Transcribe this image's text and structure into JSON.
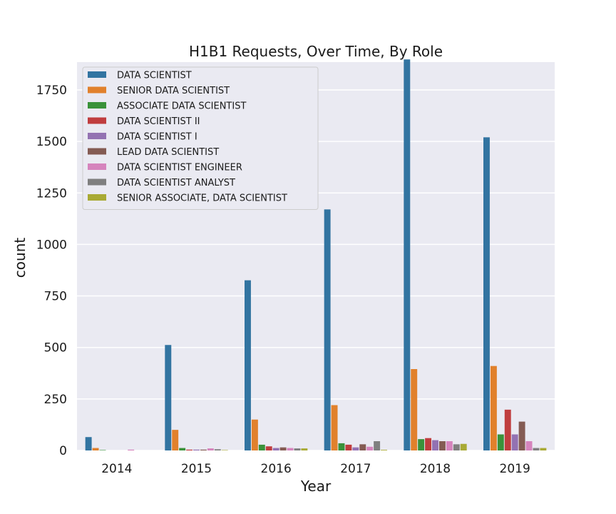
{
  "chart_data": {
    "type": "bar",
    "title": "H1B1 Requests, Over Time, By Role",
    "xlabel": "Year",
    "ylabel": "count",
    "ylim": [
      0,
      1885
    ],
    "yticks": [
      0,
      250,
      500,
      750,
      1000,
      1250,
      1500,
      1750
    ],
    "grid": true,
    "legend_position": "top-left",
    "categories": [
      "2014",
      "2015",
      "2016",
      "2017",
      "2018",
      "2019"
    ],
    "series": [
      {
        "name": "DATA SCIENTIST",
        "color": "#3274a1",
        "values": [
          65,
          512,
          826,
          1170,
          1898,
          1520
        ]
      },
      {
        "name": "SENIOR DATA SCIENTIST",
        "color": "#e1812c",
        "values": [
          12,
          100,
          150,
          220,
          395,
          410
        ]
      },
      {
        "name": "ASSOCIATE DATA SCIENTIST",
        "color": "#3a923a",
        "values": [
          2,
          12,
          28,
          35,
          55,
          78
        ]
      },
      {
        "name": "DATA SCIENTIST II",
        "color": "#c03d3e",
        "values": [
          0,
          4,
          20,
          28,
          60,
          198
        ]
      },
      {
        "name": "DATA SCIENTIST I",
        "color": "#9372b2",
        "values": [
          0,
          4,
          12,
          15,
          50,
          78
        ]
      },
      {
        "name": "LEAD DATA SCIENTIST",
        "color": "#845b53",
        "values": [
          0,
          4,
          15,
          30,
          45,
          140
        ]
      },
      {
        "name": "DATA SCIENTIST ENGINEER",
        "color": "#d684bd",
        "values": [
          4,
          10,
          12,
          18,
          45,
          45
        ]
      },
      {
        "name": "DATA SCIENTIST ANALYST",
        "color": "#7f7f7f",
        "values": [
          0,
          6,
          10,
          45,
          30,
          12
        ]
      },
      {
        "name": "SENIOR ASSOCIATE, DATA SCIENTIST",
        "color": "#a9aa35",
        "values": [
          0,
          2,
          10,
          3,
          32,
          12
        ]
      }
    ]
  }
}
